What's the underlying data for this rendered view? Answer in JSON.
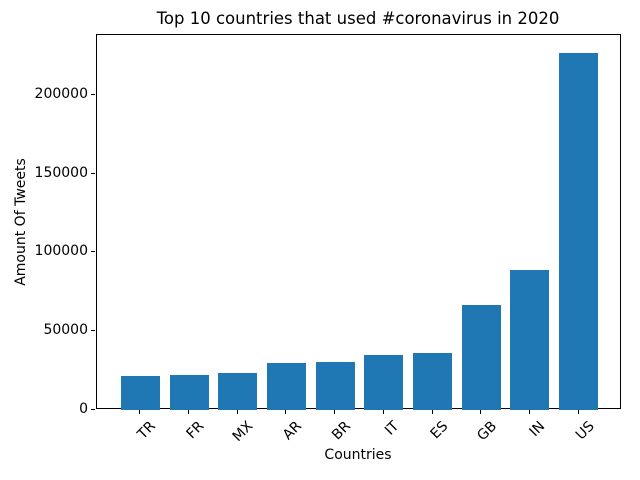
{
  "chart_data": {
    "type": "bar",
    "title": "Top 10 countries that used #coronavirus in 2020",
    "xlabel": "Countries",
    "ylabel": "Amount Of Tweets",
    "categories": [
      "TR",
      "FR",
      "MX",
      "AR",
      "BR",
      "IT",
      "ES",
      "GB",
      "IN",
      "US"
    ],
    "values": [
      21700,
      21900,
      23500,
      30000,
      30700,
      35000,
      36200,
      66500,
      88900,
      226500
    ],
    "ylim": [
      0,
      238000
    ],
    "yticks": [
      0,
      50000,
      100000,
      150000,
      200000
    ],
    "xtick_rotation": 45,
    "grid": false,
    "legend_position": "none",
    "bar_color": "#1f77b4",
    "text_color": "#000000",
    "spine_color": "#000000",
    "background_color": "#ffffff"
  }
}
